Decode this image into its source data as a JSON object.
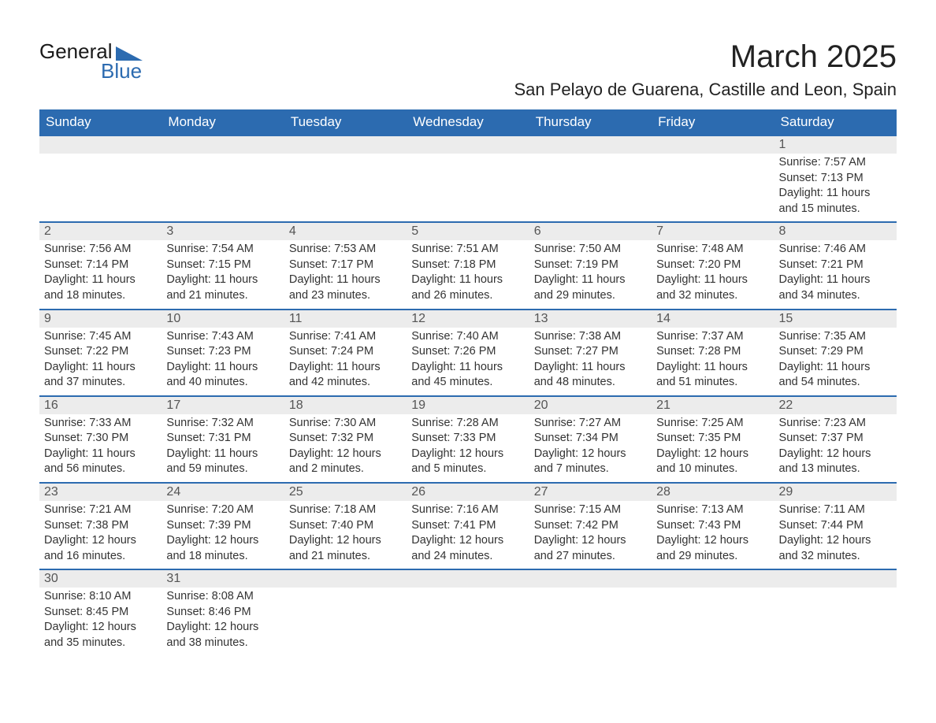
{
  "logo": {
    "text1": "General",
    "text2": "Blue",
    "icon_color": "#2c6bb0"
  },
  "title": "March 2025",
  "subtitle": "San Pelayo de Guarena, Castille and Leon, Spain",
  "weekdays": [
    "Sunday",
    "Monday",
    "Tuesday",
    "Wednesday",
    "Thursday",
    "Friday",
    "Saturday"
  ],
  "colors": {
    "header_bg": "#2c6bb0",
    "header_text": "#ffffff",
    "daynum_bg": "#ececec",
    "row_border": "#2c6bb0",
    "body_text": "#333333"
  },
  "weeks": [
    [
      {
        "day": "",
        "lines": []
      },
      {
        "day": "",
        "lines": []
      },
      {
        "day": "",
        "lines": []
      },
      {
        "day": "",
        "lines": []
      },
      {
        "day": "",
        "lines": []
      },
      {
        "day": "",
        "lines": []
      },
      {
        "day": "1",
        "lines": [
          "Sunrise: 7:57 AM",
          "Sunset: 7:13 PM",
          "Daylight: 11 hours and 15 minutes."
        ]
      }
    ],
    [
      {
        "day": "2",
        "lines": [
          "Sunrise: 7:56 AM",
          "Sunset: 7:14 PM",
          "Daylight: 11 hours and 18 minutes."
        ]
      },
      {
        "day": "3",
        "lines": [
          "Sunrise: 7:54 AM",
          "Sunset: 7:15 PM",
          "Daylight: 11 hours and 21 minutes."
        ]
      },
      {
        "day": "4",
        "lines": [
          "Sunrise: 7:53 AM",
          "Sunset: 7:17 PM",
          "Daylight: 11 hours and 23 minutes."
        ]
      },
      {
        "day": "5",
        "lines": [
          "Sunrise: 7:51 AM",
          "Sunset: 7:18 PM",
          "Daylight: 11 hours and 26 minutes."
        ]
      },
      {
        "day": "6",
        "lines": [
          "Sunrise: 7:50 AM",
          "Sunset: 7:19 PM",
          "Daylight: 11 hours and 29 minutes."
        ]
      },
      {
        "day": "7",
        "lines": [
          "Sunrise: 7:48 AM",
          "Sunset: 7:20 PM",
          "Daylight: 11 hours and 32 minutes."
        ]
      },
      {
        "day": "8",
        "lines": [
          "Sunrise: 7:46 AM",
          "Sunset: 7:21 PM",
          "Daylight: 11 hours and 34 minutes."
        ]
      }
    ],
    [
      {
        "day": "9",
        "lines": [
          "Sunrise: 7:45 AM",
          "Sunset: 7:22 PM",
          "Daylight: 11 hours and 37 minutes."
        ]
      },
      {
        "day": "10",
        "lines": [
          "Sunrise: 7:43 AM",
          "Sunset: 7:23 PM",
          "Daylight: 11 hours and 40 minutes."
        ]
      },
      {
        "day": "11",
        "lines": [
          "Sunrise: 7:41 AM",
          "Sunset: 7:24 PM",
          "Daylight: 11 hours and 42 minutes."
        ]
      },
      {
        "day": "12",
        "lines": [
          "Sunrise: 7:40 AM",
          "Sunset: 7:26 PM",
          "Daylight: 11 hours and 45 minutes."
        ]
      },
      {
        "day": "13",
        "lines": [
          "Sunrise: 7:38 AM",
          "Sunset: 7:27 PM",
          "Daylight: 11 hours and 48 minutes."
        ]
      },
      {
        "day": "14",
        "lines": [
          "Sunrise: 7:37 AM",
          "Sunset: 7:28 PM",
          "Daylight: 11 hours and 51 minutes."
        ]
      },
      {
        "day": "15",
        "lines": [
          "Sunrise: 7:35 AM",
          "Sunset: 7:29 PM",
          "Daylight: 11 hours and 54 minutes."
        ]
      }
    ],
    [
      {
        "day": "16",
        "lines": [
          "Sunrise: 7:33 AM",
          "Sunset: 7:30 PM",
          "Daylight: 11 hours and 56 minutes."
        ]
      },
      {
        "day": "17",
        "lines": [
          "Sunrise: 7:32 AM",
          "Sunset: 7:31 PM",
          "Daylight: 11 hours and 59 minutes."
        ]
      },
      {
        "day": "18",
        "lines": [
          "Sunrise: 7:30 AM",
          "Sunset: 7:32 PM",
          "Daylight: 12 hours and 2 minutes."
        ]
      },
      {
        "day": "19",
        "lines": [
          "Sunrise: 7:28 AM",
          "Sunset: 7:33 PM",
          "Daylight: 12 hours and 5 minutes."
        ]
      },
      {
        "day": "20",
        "lines": [
          "Sunrise: 7:27 AM",
          "Sunset: 7:34 PM",
          "Daylight: 12 hours and 7 minutes."
        ]
      },
      {
        "day": "21",
        "lines": [
          "Sunrise: 7:25 AM",
          "Sunset: 7:35 PM",
          "Daylight: 12 hours and 10 minutes."
        ]
      },
      {
        "day": "22",
        "lines": [
          "Sunrise: 7:23 AM",
          "Sunset: 7:37 PM",
          "Daylight: 12 hours and 13 minutes."
        ]
      }
    ],
    [
      {
        "day": "23",
        "lines": [
          "Sunrise: 7:21 AM",
          "Sunset: 7:38 PM",
          "Daylight: 12 hours and 16 minutes."
        ]
      },
      {
        "day": "24",
        "lines": [
          "Sunrise: 7:20 AM",
          "Sunset: 7:39 PM",
          "Daylight: 12 hours and 18 minutes."
        ]
      },
      {
        "day": "25",
        "lines": [
          "Sunrise: 7:18 AM",
          "Sunset: 7:40 PM",
          "Daylight: 12 hours and 21 minutes."
        ]
      },
      {
        "day": "26",
        "lines": [
          "Sunrise: 7:16 AM",
          "Sunset: 7:41 PM",
          "Daylight: 12 hours and 24 minutes."
        ]
      },
      {
        "day": "27",
        "lines": [
          "Sunrise: 7:15 AM",
          "Sunset: 7:42 PM",
          "Daylight: 12 hours and 27 minutes."
        ]
      },
      {
        "day": "28",
        "lines": [
          "Sunrise: 7:13 AM",
          "Sunset: 7:43 PM",
          "Daylight: 12 hours and 29 minutes."
        ]
      },
      {
        "day": "29",
        "lines": [
          "Sunrise: 7:11 AM",
          "Sunset: 7:44 PM",
          "Daylight: 12 hours and 32 minutes."
        ]
      }
    ],
    [
      {
        "day": "30",
        "lines": [
          "Sunrise: 8:10 AM",
          "Sunset: 8:45 PM",
          "Daylight: 12 hours and 35 minutes."
        ]
      },
      {
        "day": "31",
        "lines": [
          "Sunrise: 8:08 AM",
          "Sunset: 8:46 PM",
          "Daylight: 12 hours and 38 minutes."
        ]
      },
      {
        "day": "",
        "lines": []
      },
      {
        "day": "",
        "lines": []
      },
      {
        "day": "",
        "lines": []
      },
      {
        "day": "",
        "lines": []
      },
      {
        "day": "",
        "lines": []
      }
    ]
  ]
}
